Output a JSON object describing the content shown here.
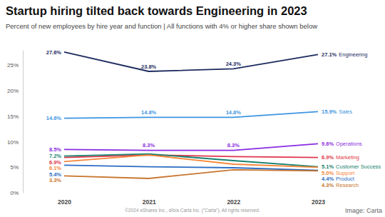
{
  "chart_data": {
    "type": "line",
    "title": "Startup hiring tilted back towards Engineering in 2023",
    "subtitle": "Percent of new employees by hire year and function | All functions with 4% or higher share shown below",
    "annotations": [
      "©2024 eShares Inc., d/b/a Carta Inc. (\"Carta\"). All rights reserved.",
      "Image: Carta"
    ],
    "categories": [
      "2020",
      "2021",
      "2022",
      "2023"
    ],
    "ylim": [
      0,
      28
    ],
    "yticks": [
      {
        "value": 0,
        "label": "0%"
      },
      {
        "value": 5,
        "label": "5%"
      },
      {
        "value": 10,
        "label": "10%"
      },
      {
        "value": 15,
        "label": "15%"
      },
      {
        "value": 20,
        "label": "20%"
      },
      {
        "value": 25,
        "label": "25%"
      }
    ],
    "grid": false,
    "series": [
      {
        "name": "Engineering",
        "color": "#1b2a5e",
        "values": [
          27.6,
          23.8,
          24.3,
          27.1
        ],
        "value_labels": [
          "27.6%",
          "23.8%",
          "24.3%",
          "27.1%"
        ]
      },
      {
        "name": "Sales",
        "color": "#3d95e0",
        "values": [
          14.6,
          14.8,
          14.8,
          15.9
        ],
        "value_labels": [
          "14.6%",
          "14.8%",
          "14.8%",
          "15.9%"
        ]
      },
      {
        "name": "Operations",
        "color": "#8a2be2",
        "values": [
          8.5,
          8.3,
          8.3,
          9.6
        ],
        "value_labels": [
          "8.5%",
          "8.3%",
          "8.3%",
          "9.6%"
        ]
      },
      {
        "name": "Marketing",
        "color": "#e0364a",
        "values": [
          6.9,
          7.4,
          7.1,
          6.9
        ],
        "value_labels": [
          "6.9%",
          null,
          null,
          "6.9%"
        ]
      },
      {
        "name": "Customer Success",
        "color": "#17806f",
        "values": [
          7.2,
          7.6,
          6.3,
          5.1
        ],
        "value_labels": [
          "7.2%",
          null,
          null,
          "5.1%"
        ]
      },
      {
        "name": "Support",
        "color": "#f5873a",
        "values": [
          6.1,
          7.4,
          5.6,
          5.0
        ],
        "value_labels": [
          "6.1%",
          null,
          null,
          "5.0%"
        ]
      },
      {
        "name": "Product",
        "color": "#2b6cc4",
        "values": [
          5.4,
          5.1,
          4.9,
          4.4
        ],
        "value_labels": [
          "5.4%",
          null,
          null,
          "4.4%"
        ]
      },
      {
        "name": "Research",
        "color": "#c8762f",
        "values": [
          3.3,
          2.8,
          4.5,
          4.3
        ],
        "value_labels": [
          "3.3%",
          null,
          null,
          "4.3%"
        ]
      }
    ]
  }
}
